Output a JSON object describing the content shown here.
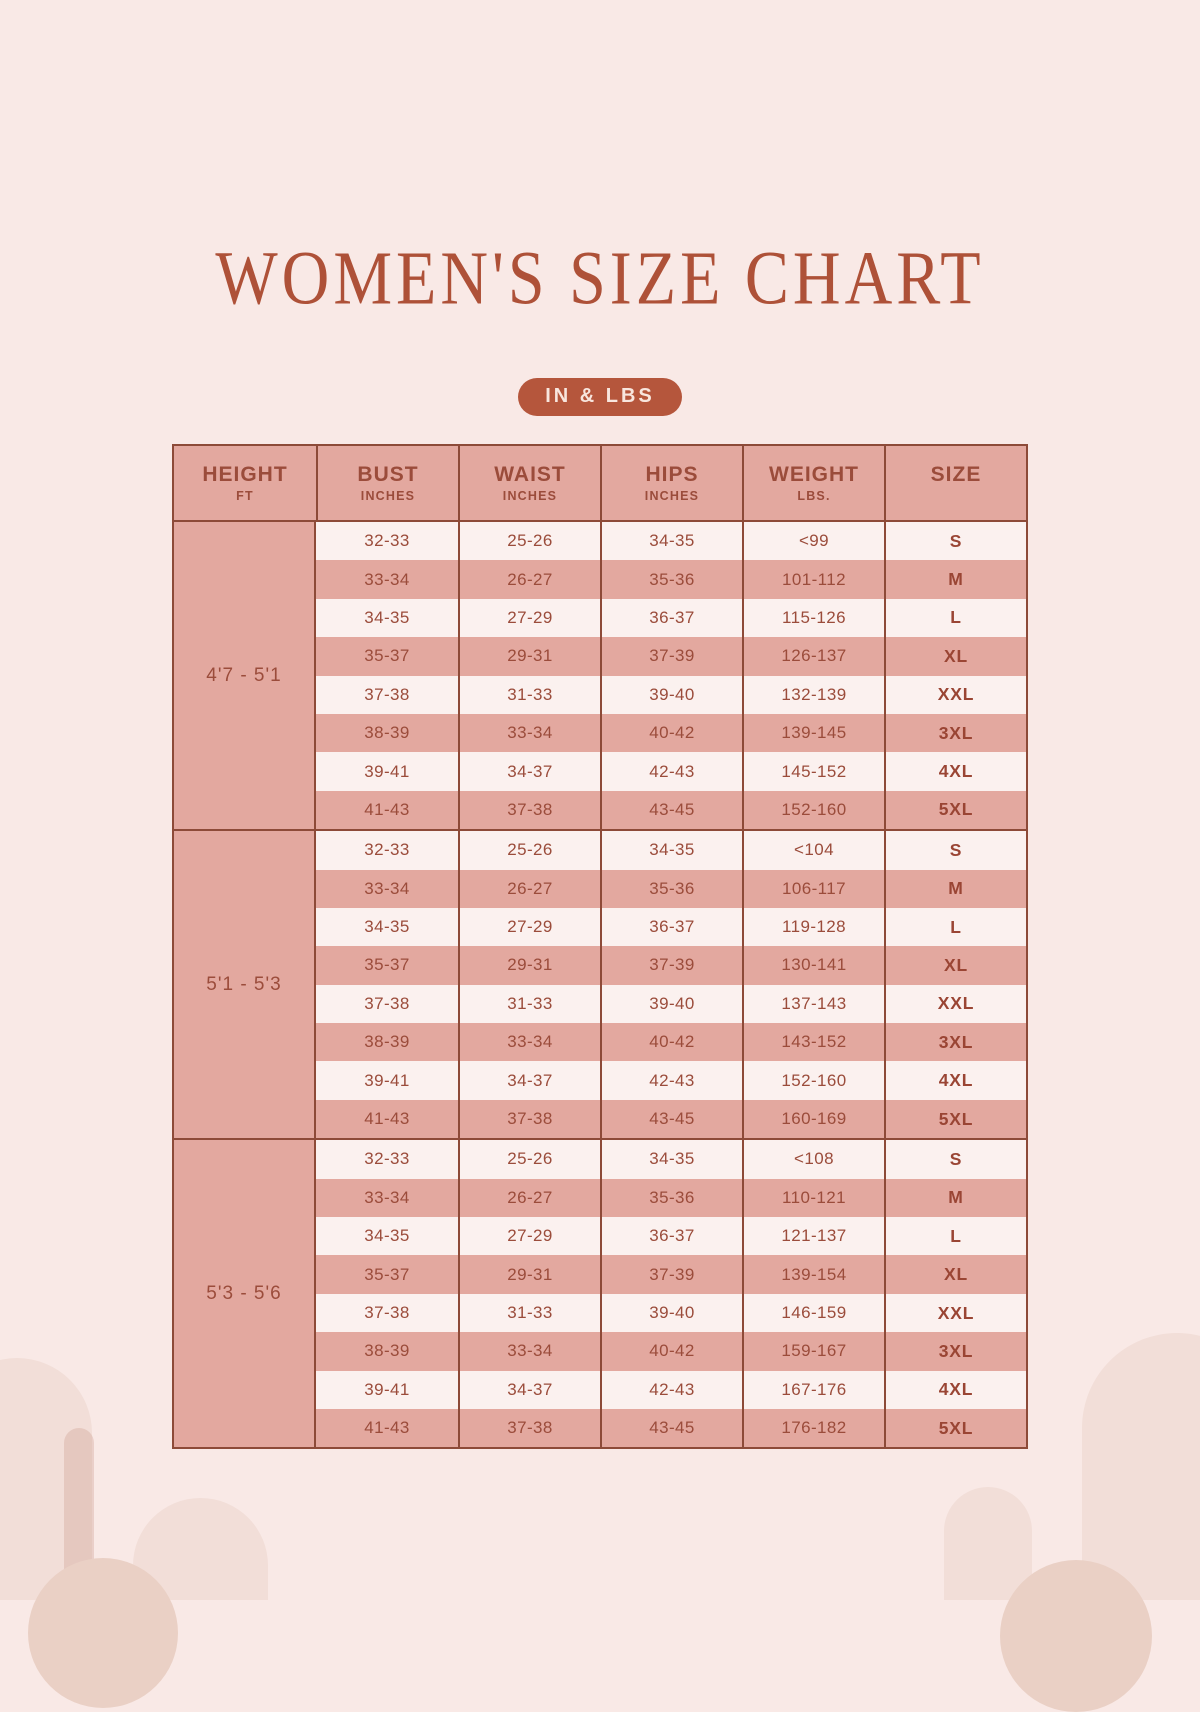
{
  "page": {
    "title": "WOMEN'S SIZE CHART",
    "badge": "IN & LBS"
  },
  "colors": {
    "background": "#f9e9e6",
    "accent": "#ae5138",
    "table_pink": "#e3a89f",
    "table_cream": "#fbf1ef",
    "border": "#8d4a38",
    "text": "#9b4c3b",
    "badge_bg": "#b5563c",
    "badge_text": "#f8e6de"
  },
  "table": {
    "columns": [
      {
        "label": "HEIGHT",
        "sublabel": "FT"
      },
      {
        "label": "BUST",
        "sublabel": "INCHES"
      },
      {
        "label": "WAIST",
        "sublabel": "INCHES"
      },
      {
        "label": "HIPS",
        "sublabel": "INCHES"
      },
      {
        "label": "WEIGHT",
        "sublabel": "LBS."
      },
      {
        "label": "SIZE",
        "sublabel": ""
      }
    ],
    "groups": [
      {
        "height": "4'7 - 5'1",
        "rows": [
          {
            "bust": "32-33",
            "waist": "25-26",
            "hips": "34-35",
            "weight": "<99",
            "size": "S"
          },
          {
            "bust": "33-34",
            "waist": "26-27",
            "hips": "35-36",
            "weight": "101-112",
            "size": "M"
          },
          {
            "bust": "34-35",
            "waist": "27-29",
            "hips": "36-37",
            "weight": "115-126",
            "size": "L"
          },
          {
            "bust": "35-37",
            "waist": "29-31",
            "hips": "37-39",
            "weight": "126-137",
            "size": "XL"
          },
          {
            "bust": "37-38",
            "waist": "31-33",
            "hips": "39-40",
            "weight": "132-139",
            "size": "XXL"
          },
          {
            "bust": "38-39",
            "waist": "33-34",
            "hips": "40-42",
            "weight": "139-145",
            "size": "3XL"
          },
          {
            "bust": "39-41",
            "waist": "34-37",
            "hips": "42-43",
            "weight": "145-152",
            "size": "4XL"
          },
          {
            "bust": "41-43",
            "waist": "37-38",
            "hips": "43-45",
            "weight": "152-160",
            "size": "5XL"
          }
        ]
      },
      {
        "height": "5'1 - 5'3",
        "rows": [
          {
            "bust": "32-33",
            "waist": "25-26",
            "hips": "34-35",
            "weight": "<104",
            "size": "S"
          },
          {
            "bust": "33-34",
            "waist": "26-27",
            "hips": "35-36",
            "weight": "106-117",
            "size": "M"
          },
          {
            "bust": "34-35",
            "waist": "27-29",
            "hips": "36-37",
            "weight": "119-128",
            "size": "L"
          },
          {
            "bust": "35-37",
            "waist": "29-31",
            "hips": "37-39",
            "weight": "130-141",
            "size": "XL"
          },
          {
            "bust": "37-38",
            "waist": "31-33",
            "hips": "39-40",
            "weight": "137-143",
            "size": "XXL"
          },
          {
            "bust": "38-39",
            "waist": "33-34",
            "hips": "40-42",
            "weight": "143-152",
            "size": "3XL"
          },
          {
            "bust": "39-41",
            "waist": "34-37",
            "hips": "42-43",
            "weight": "152-160",
            "size": "4XL"
          },
          {
            "bust": "41-43",
            "waist": "37-38",
            "hips": "43-45",
            "weight": "160-169",
            "size": "5XL"
          }
        ]
      },
      {
        "height": "5'3 - 5'6",
        "rows": [
          {
            "bust": "32-33",
            "waist": "25-26",
            "hips": "34-35",
            "weight": "<108",
            "size": "S"
          },
          {
            "bust": "33-34",
            "waist": "26-27",
            "hips": "35-36",
            "weight": "110-121",
            "size": "M"
          },
          {
            "bust": "34-35",
            "waist": "27-29",
            "hips": "36-37",
            "weight": "121-137",
            "size": "L"
          },
          {
            "bust": "35-37",
            "waist": "29-31",
            "hips": "37-39",
            "weight": "139-154",
            "size": "XL"
          },
          {
            "bust": "37-38",
            "waist": "31-33",
            "hips": "39-40",
            "weight": "146-159",
            "size": "XXL"
          },
          {
            "bust": "38-39",
            "waist": "33-34",
            "hips": "40-42",
            "weight": "159-167",
            "size": "3XL"
          },
          {
            "bust": "39-41",
            "waist": "34-37",
            "hips": "42-43",
            "weight": "167-176",
            "size": "4XL"
          },
          {
            "bust": "41-43",
            "waist": "37-38",
            "hips": "43-45",
            "weight": "176-182",
            "size": "5XL"
          }
        ]
      }
    ]
  }
}
